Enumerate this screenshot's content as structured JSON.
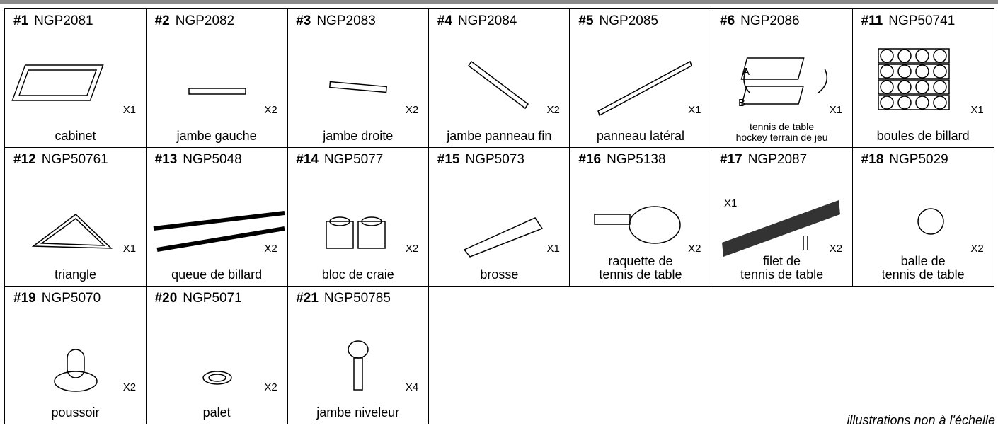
{
  "parts": [
    {
      "number": "#1",
      "code": "NGP2081",
      "qty": "X1",
      "name": [
        "cabinet"
      ]
    },
    {
      "number": "#2",
      "code": "NGP2082",
      "qty": "X2",
      "name": [
        "jambe gauche"
      ]
    },
    {
      "number": "#3",
      "code": "NGP2083",
      "qty": "X2",
      "name": [
        "jambe droite"
      ]
    },
    {
      "number": "#4",
      "code": "NGP2084",
      "qty": "X2",
      "name": [
        "jambe panneau fin"
      ]
    },
    {
      "number": "#5",
      "code": "NGP2085",
      "qty": "X1",
      "name": [
        "panneau latéral"
      ]
    },
    {
      "number": "#6",
      "code": "NGP2086",
      "qty": "X1",
      "name": [
        "tennis de table",
        "hockey terrain de jeu"
      ],
      "labels": [
        "A",
        "B"
      ]
    },
    {
      "number": "#11",
      "code": "NGP50741",
      "qty": "X1",
      "name": [
        "boules de billard"
      ]
    },
    {
      "number": "#12",
      "code": "NGP50761",
      "qty": "X1",
      "name": [
        "triangle"
      ]
    },
    {
      "number": "#13",
      "code": "NGP5048",
      "qty": "X2",
      "name": [
        "queue de billard"
      ]
    },
    {
      "number": "#14",
      "code": "NGP5077",
      "qty": "X2",
      "name": [
        "bloc de craie"
      ]
    },
    {
      "number": "#15",
      "code": "NGP5073",
      "qty": "X1",
      "name": [
        "brosse"
      ]
    },
    {
      "number": "#16",
      "code": "NGP5138",
      "qty": "X2",
      "name": [
        "raquette de",
        "tennis de table"
      ]
    },
    {
      "number": "#17",
      "code": "NGP2087",
      "qty": "X2",
      "qty2": "X1",
      "name": [
        "filet de",
        "tennis de table"
      ]
    },
    {
      "number": "#18",
      "code": "NGP5029",
      "qty": "X2",
      "name": [
        "balle de",
        "tennis de table"
      ]
    },
    {
      "number": "#19",
      "code": "NGP5070",
      "qty": "X2",
      "name": [
        "poussoir"
      ]
    },
    {
      "number": "#20",
      "code": "NGP5071",
      "qty": "X2",
      "name": [
        "palet"
      ]
    },
    {
      "number": "#21",
      "code": "NGP50785",
      "qty": "X4",
      "name": [
        "jambe niveleur"
      ]
    }
  ],
  "note": "illustrations non à l'échelle"
}
